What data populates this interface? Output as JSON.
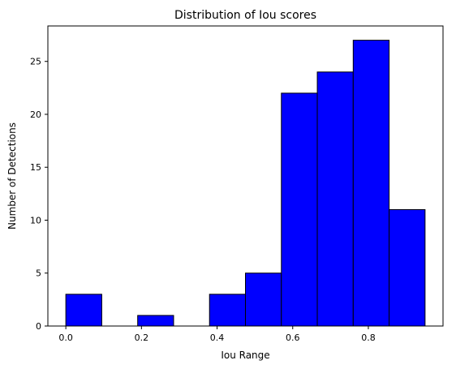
{
  "chart_data": {
    "type": "bar",
    "subtype": "histogram",
    "title": "Distribution of Iou scores",
    "xlabel": "Iou Range",
    "ylabel": "Number of Detections",
    "xlim": [
      -0.0475,
      0.9975
    ],
    "ylim": [
      0,
      28.35
    ],
    "xticks": [
      0.0,
      0.2,
      0.4,
      0.6,
      0.8
    ],
    "xtick_labels": [
      "0.0",
      "0.2",
      "0.4",
      "0.6",
      "0.8"
    ],
    "yticks": [
      0,
      5,
      10,
      15,
      20,
      25
    ],
    "ytick_labels": [
      "0",
      "5",
      "10",
      "15",
      "20",
      "25"
    ],
    "bins": [
      {
        "start": 0.0,
        "end": 0.095,
        "count": 3
      },
      {
        "start": 0.095,
        "end": 0.19,
        "count": 0
      },
      {
        "start": 0.19,
        "end": 0.285,
        "count": 1
      },
      {
        "start": 0.285,
        "end": 0.38,
        "count": 0
      },
      {
        "start": 0.38,
        "end": 0.475,
        "count": 3
      },
      {
        "start": 0.475,
        "end": 0.57,
        "count": 5
      },
      {
        "start": 0.57,
        "end": 0.665,
        "count": 22
      },
      {
        "start": 0.665,
        "end": 0.76,
        "count": 24
      },
      {
        "start": 0.76,
        "end": 0.855,
        "count": 27
      },
      {
        "start": 0.855,
        "end": 0.95,
        "count": 11
      }
    ],
    "bar_color": "#0000ff",
    "edge_color": "#000000",
    "grid": false,
    "legend": "none"
  }
}
